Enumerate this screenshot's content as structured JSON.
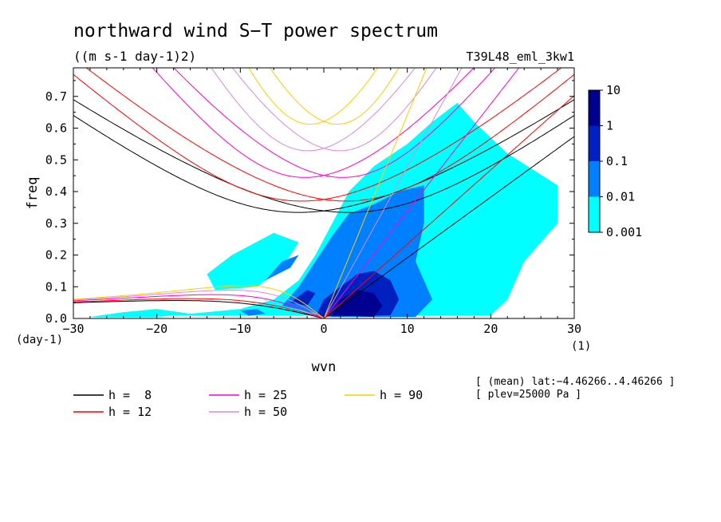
{
  "chart_data": {
    "type": "heatmap",
    "title": "northward wind S−T power spectrum",
    "units": "((m s-1 day-1)2)",
    "experiment": "T39L48_eml_3kw1",
    "xlabel": "wvn",
    "ylabel": "freq",
    "x_unit": "(1)",
    "y_unit": "(day-1)",
    "xlim": [
      -30,
      30
    ],
    "ylim": [
      0,
      0.79
    ],
    "x_ticks": [
      -30,
      -20,
      -10,
      0,
      10,
      20,
      30
    ],
    "x_tick_labels": [
      "−30",
      "−20",
      "−10",
      "0",
      "10",
      "20",
      "30"
    ],
    "y_ticks": [
      0.0,
      0.1,
      0.2,
      0.3,
      0.4,
      0.5,
      0.6,
      0.7
    ],
    "y_tick_labels": [
      "0.0",
      "0.1",
      "0.2",
      "0.3",
      "0.4",
      "0.5",
      "0.6",
      "0.7"
    ],
    "colorbar": {
      "levels": [
        "0.001",
        "0.01",
        "0.1",
        "1",
        "10"
      ],
      "colors": [
        "#00ffff",
        "#0080ff",
        "#0020c0",
        "#000090",
        "#3000b0"
      ]
    },
    "contour_regions": [
      {
        "level": "0.001",
        "color": "#00ffff",
        "points": [
          [
            -18,
            0.01
          ],
          [
            -10,
            0.03
          ],
          [
            -6,
            0.06
          ],
          [
            -3,
            0.12
          ],
          [
            -1,
            0.2
          ],
          [
            1,
            0.3
          ],
          [
            3,
            0.4
          ],
          [
            6,
            0.48
          ],
          [
            10,
            0.55
          ],
          [
            13,
            0.62
          ],
          [
            16,
            0.68
          ],
          [
            18,
            0.62
          ],
          [
            22,
            0.52
          ],
          [
            28,
            0.42
          ],
          [
            28,
            0.3
          ],
          [
            24,
            0.18
          ],
          [
            22,
            0.06
          ],
          [
            20,
            0.01
          ]
        ]
      },
      {
        "level": "0.001",
        "color": "#00ffff",
        "points": [
          [
            -13,
            0.09
          ],
          [
            -8,
            0.1
          ],
          [
            -5,
            0.16
          ],
          [
            -3,
            0.24
          ],
          [
            -6,
            0.27
          ],
          [
            -11,
            0.2
          ],
          [
            -14,
            0.14
          ]
        ]
      },
      {
        "level": "0.001",
        "color": "#00ffff",
        "points": [
          [
            -28,
            0.005
          ],
          [
            -24,
            0.02
          ],
          [
            -20,
            0.03
          ],
          [
            -16,
            0.015
          ],
          [
            -20,
            0.005
          ]
        ]
      },
      {
        "level": "0.01",
        "color": "#0080ff",
        "points": [
          [
            -5,
            0.04
          ],
          [
            -3,
            0.1
          ],
          [
            -1,
            0.18
          ],
          [
            1,
            0.26
          ],
          [
            3,
            0.33
          ],
          [
            6,
            0.36
          ],
          [
            9,
            0.4
          ],
          [
            12,
            0.42
          ],
          [
            12,
            0.3
          ],
          [
            11,
            0.18
          ],
          [
            13,
            0.06
          ],
          [
            11,
            0.005
          ],
          [
            1,
            0.005
          ]
        ]
      },
      {
        "level": "0.01",
        "color": "#0080ff",
        "points": [
          [
            -7,
            0.12
          ],
          [
            -4,
            0.16
          ],
          [
            -3,
            0.2
          ],
          [
            -5,
            0.18
          ]
        ]
      },
      {
        "level": "0.01",
        "color": "#0080ff",
        "points": [
          [
            -10,
            0.025
          ],
          [
            -8,
            0.03
          ],
          [
            -7,
            0.015
          ],
          [
            -9,
            0.008
          ]
        ]
      },
      {
        "level": "0.1",
        "color": "#0020c0",
        "points": [
          [
            -1,
            0.005
          ],
          [
            0,
            0.06
          ],
          [
            2,
            0.1
          ],
          [
            4,
            0.14
          ],
          [
            6,
            0.15
          ],
          [
            8,
            0.12
          ],
          [
            9,
            0.06
          ],
          [
            8,
            0.01
          ]
        ]
      },
      {
        "level": "0.1",
        "color": "#0020c0",
        "points": [
          [
            -4,
            0.05
          ],
          [
            -2,
            0.09
          ],
          [
            -1,
            0.08
          ],
          [
            -2,
            0.04
          ]
        ]
      },
      {
        "level": "1",
        "color": "#000090",
        "points": [
          [
            1,
            0.01
          ],
          [
            2,
            0.06
          ],
          [
            4,
            0.09
          ],
          [
            6,
            0.08
          ],
          [
            7,
            0.04
          ],
          [
            6,
            0.005
          ]
        ]
      }
    ],
    "dispersion_curves": [
      {
        "h": "8",
        "color": "#000000"
      },
      {
        "h": "12",
        "color": "#ff0000"
      },
      {
        "h": "25",
        "color": "#ff00cc"
      },
      {
        "h": "50",
        "color": "#dd88dd"
      },
      {
        "h": "90",
        "color": "#ffcc00"
      }
    ],
    "curve_families": [
      "westward inertia-gravity (n=1)",
      "eastward inertia-gravity (n=1)",
      "Kelvin",
      "equatorial Rossby (n=1)"
    ],
    "legend": [
      {
        "label": "h =  8",
        "color": "#000000"
      },
      {
        "label": "h = 12",
        "color": "#ff0000"
      },
      {
        "label": "h = 25",
        "color": "#ff00cc"
      },
      {
        "label": "h = 50",
        "color": "#dd88dd"
      },
      {
        "label": "h = 90",
        "color": "#ffcc00"
      }
    ],
    "annotations": [
      "[ (mean) lat:−4.46266..4.46266 ]",
      "[ plev=25000 Pa ]"
    ]
  }
}
